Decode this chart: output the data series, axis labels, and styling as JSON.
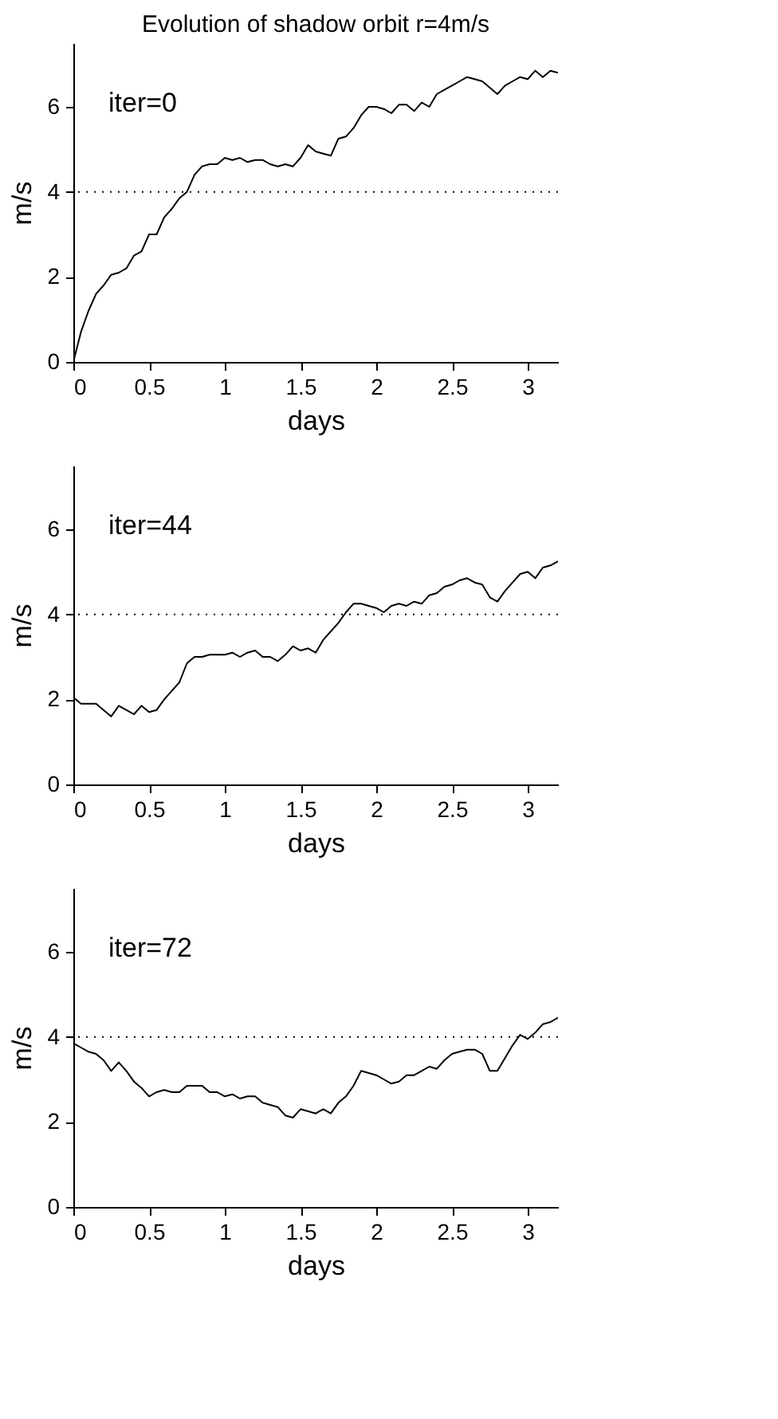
{
  "chart_data": [
    {
      "type": "line",
      "title": "Evolution of shadow orbit r=4m/s",
      "xlabel": "days",
      "ylabel": "m/s",
      "annotations": [
        "iter=0"
      ],
      "x": [
        0,
        0.05,
        0.1,
        0.15,
        0.2,
        0.25,
        0.3,
        0.35,
        0.4,
        0.45,
        0.5,
        0.55,
        0.6,
        0.65,
        0.7,
        0.75,
        0.8,
        0.85,
        0.9,
        0.95,
        1.0,
        1.05,
        1.1,
        1.15,
        1.2,
        1.25,
        1.3,
        1.35,
        1.4,
        1.45,
        1.5,
        1.55,
        1.6,
        1.65,
        1.7,
        1.75,
        1.8,
        1.85,
        1.9,
        1.95,
        2.0,
        2.05,
        2.1,
        2.15,
        2.2,
        2.25,
        2.3,
        2.35,
        2.4,
        2.45,
        2.5,
        2.55,
        2.6,
        2.65,
        2.7,
        2.75,
        2.8,
        2.85,
        2.9,
        2.95,
        3.0,
        3.05,
        3.1,
        3.15,
        3.2
      ],
      "series": [
        {
          "color": "#000000",
          "values": [
            0,
            0.7,
            1.2,
            1.6,
            1.8,
            2.05,
            2.1,
            2.2,
            2.5,
            2.6,
            3.0,
            3.0,
            3.4,
            3.6,
            3.85,
            4.0,
            4.4,
            4.6,
            4.65,
            4.65,
            4.8,
            4.75,
            4.8,
            4.7,
            4.75,
            4.75,
            4.65,
            4.6,
            4.65,
            4.6,
            4.8,
            5.1,
            4.95,
            4.9,
            4.85,
            5.25,
            5.3,
            5.5,
            5.8,
            6.0,
            6.0,
            5.95,
            5.85,
            6.05,
            6.05,
            5.9,
            6.1,
            6.0,
            6.3,
            6.4,
            6.5,
            6.6,
            6.7,
            6.65,
            6.6,
            6.45,
            6.3,
            6.5,
            6.6,
            6.7,
            6.65,
            6.85,
            6.7,
            6.85,
            6.8
          ]
        }
      ],
      "xlim": [
        0,
        3.2
      ],
      "ylim": [
        0,
        7.5
      ],
      "xticks": [
        0,
        0.5,
        1,
        1.5,
        2,
        2.5,
        3
      ],
      "yticks": [
        0,
        2,
        4,
        6
      ],
      "ref_lines": [
        {
          "axis": "y",
          "value": 4,
          "color": "#000000",
          "line_style": "dotted"
        }
      ],
      "grid": false
    },
    {
      "type": "line",
      "xlabel": "days",
      "ylabel": "m/s",
      "annotations": [
        "iter=44"
      ],
      "x": [
        0,
        0.05,
        0.1,
        0.15,
        0.2,
        0.25,
        0.3,
        0.35,
        0.4,
        0.45,
        0.5,
        0.55,
        0.6,
        0.65,
        0.7,
        0.75,
        0.8,
        0.85,
        0.9,
        0.95,
        1.0,
        1.05,
        1.1,
        1.15,
        1.2,
        1.25,
        1.3,
        1.35,
        1.4,
        1.45,
        1.5,
        1.55,
        1.6,
        1.65,
        1.7,
        1.75,
        1.8,
        1.85,
        1.9,
        1.95,
        2.0,
        2.05,
        2.1,
        2.15,
        2.2,
        2.25,
        2.3,
        2.35,
        2.4,
        2.45,
        2.5,
        2.55,
        2.6,
        2.65,
        2.7,
        2.75,
        2.8,
        2.85,
        2.9,
        2.95,
        3.0,
        3.05,
        3.1,
        3.15,
        3.2
      ],
      "series": [
        {
          "color": "#000000",
          "values": [
            2.05,
            1.9,
            1.9,
            1.9,
            1.75,
            1.6,
            1.85,
            1.75,
            1.65,
            1.85,
            1.7,
            1.75,
            2.0,
            2.2,
            2.4,
            2.85,
            3.0,
            3.0,
            3.05,
            3.05,
            3.05,
            3.1,
            3.0,
            3.1,
            3.15,
            3.0,
            3.0,
            2.9,
            3.05,
            3.25,
            3.15,
            3.2,
            3.1,
            3.4,
            3.6,
            3.8,
            4.05,
            4.25,
            4.25,
            4.2,
            4.15,
            4.05,
            4.2,
            4.25,
            4.2,
            4.3,
            4.25,
            4.45,
            4.5,
            4.65,
            4.7,
            4.8,
            4.85,
            4.75,
            4.7,
            4.4,
            4.3,
            4.55,
            4.75,
            4.95,
            5.0,
            4.85,
            5.1,
            5.15,
            5.25
          ]
        }
      ],
      "xlim": [
        0,
        3.2
      ],
      "ylim": [
        0,
        7.5
      ],
      "xticks": [
        0,
        0.5,
        1,
        1.5,
        2,
        2.5,
        3
      ],
      "yticks": [
        0,
        2,
        4,
        6
      ],
      "ref_lines": [
        {
          "axis": "y",
          "value": 4,
          "color": "#000000",
          "line_style": "dotted"
        }
      ],
      "grid": false
    },
    {
      "type": "line",
      "xlabel": "days",
      "ylabel": "m/s",
      "annotations": [
        "iter=72"
      ],
      "x": [
        0,
        0.05,
        0.1,
        0.15,
        0.2,
        0.25,
        0.3,
        0.35,
        0.4,
        0.45,
        0.5,
        0.55,
        0.6,
        0.65,
        0.7,
        0.75,
        0.8,
        0.85,
        0.9,
        0.95,
        1.0,
        1.05,
        1.1,
        1.15,
        1.2,
        1.25,
        1.3,
        1.35,
        1.4,
        1.45,
        1.5,
        1.55,
        1.6,
        1.65,
        1.7,
        1.75,
        1.8,
        1.85,
        1.9,
        1.95,
        2.0,
        2.05,
        2.1,
        2.15,
        2.2,
        2.25,
        2.3,
        2.35,
        2.4,
        2.45,
        2.5,
        2.55,
        2.6,
        2.65,
        2.7,
        2.75,
        2.8,
        2.85,
        2.9,
        2.95,
        3.0,
        3.05,
        3.1,
        3.15,
        3.2
      ],
      "series": [
        {
          "color": "#000000",
          "values": [
            3.85,
            3.75,
            3.65,
            3.6,
            3.45,
            3.2,
            3.4,
            3.2,
            2.95,
            2.8,
            2.6,
            2.7,
            2.75,
            2.7,
            2.7,
            2.85,
            2.85,
            2.85,
            2.7,
            2.7,
            2.6,
            2.65,
            2.55,
            2.6,
            2.6,
            2.45,
            2.4,
            2.35,
            2.15,
            2.1,
            2.3,
            2.25,
            2.2,
            2.3,
            2.2,
            2.45,
            2.6,
            2.85,
            3.2,
            3.15,
            3.1,
            3.0,
            2.9,
            2.95,
            3.1,
            3.1,
            3.2,
            3.3,
            3.25,
            3.45,
            3.6,
            3.65,
            3.7,
            3.7,
            3.6,
            3.2,
            3.2,
            3.5,
            3.8,
            4.05,
            3.95,
            4.1,
            4.3,
            4.35,
            4.45
          ]
        }
      ],
      "xlim": [
        0,
        3.2
      ],
      "ylim": [
        0,
        7.5
      ],
      "xticks": [
        0,
        0.5,
        1,
        1.5,
        2,
        2.5,
        3
      ],
      "yticks": [
        0,
        2,
        4,
        6
      ],
      "ref_lines": [
        {
          "axis": "y",
          "value": 4,
          "color": "#000000",
          "line_style": "dotted"
        }
      ],
      "grid": false
    }
  ]
}
